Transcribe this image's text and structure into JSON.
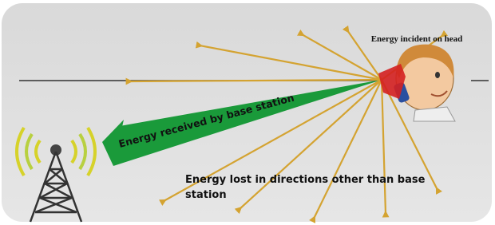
{
  "labels": {
    "incident": "Energy incident on head",
    "received": "Energy received by base station",
    "lost": [
      "Energy lost in directions other than base",
      "station"
    ]
  }
}
